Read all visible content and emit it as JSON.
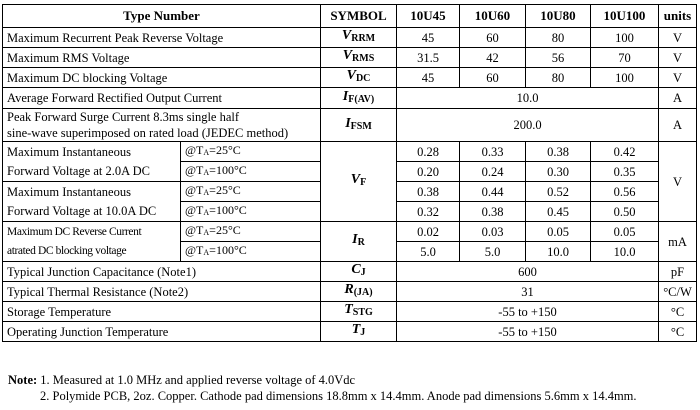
{
  "header": {
    "type_number": "Type Number",
    "symbol": "SYMBOL",
    "parts": [
      "10U45",
      "10U60",
      "10U80",
      "10U100"
    ],
    "units": "units"
  },
  "rows": {
    "vrrm": {
      "label": "Maximum Recurrent Peak Reverse Voltage",
      "sym": "V",
      "sub": "RRM",
      "values": [
        "45",
        "60",
        "80",
        "100"
      ],
      "unit": "V"
    },
    "vrms": {
      "label": "Maximum RMS Voltage",
      "sym": "V",
      "sub": "RMS",
      "values": [
        "31.5",
        "42",
        "56",
        "70"
      ],
      "unit": "V"
    },
    "vdc": {
      "label": "Maximum DC blocking Voltage",
      "sym": "V",
      "sub": "DC",
      "values": [
        "45",
        "60",
        "80",
        "100"
      ],
      "unit": "V"
    },
    "ifav": {
      "label": "Average Forward Rectified Output Current",
      "sym": "I",
      "sub": "F(AV)",
      "value": "10.0",
      "unit": "A"
    },
    "ifsm": {
      "label_1": "Peak Forward Surge Current 8.3ms single half",
      "label_2": "sine-wave superimposed on rated load (JEDEC method)",
      "sym": "I",
      "sub": "FSM",
      "value": "200.0",
      "unit": "A"
    },
    "vf": {
      "sym": "V",
      "sub": "F",
      "unit": "V",
      "label_a1": "Maximum Instantaneous",
      "label_a2": "Forward Voltage at 2.0A DC",
      "label_b1": "Maximum Instantaneous",
      "label_b2": "Forward Voltage at 10.0A DC",
      "cond_at": "@T",
      "cond_sub": "A",
      "cond_25": "=25°C",
      "cond_100": "=100°C",
      "r1": [
        "0.28",
        "0.33",
        "0.38",
        "0.42"
      ],
      "r2": [
        "0.20",
        "0.24",
        "0.30",
        "0.35"
      ],
      "r3": [
        "0.38",
        "0.44",
        "0.52",
        "0.56"
      ],
      "r4": [
        "0.32",
        "0.38",
        "0.45",
        "0.50"
      ]
    },
    "ir": {
      "sym": "I",
      "sub": "R",
      "unit": "mA",
      "label_1": "Maximum DC Reverse Current",
      "label_2": "atrated DC blocking voltage",
      "cond_at": "@T",
      "cond_sub": "A",
      "cond_25": "=25°C",
      "cond_100": "=100°C",
      "r1": [
        "0.02",
        "0.03",
        "0.05",
        "0.05"
      ],
      "r2": [
        "5.0",
        "5.0",
        "10.0",
        "10.0"
      ]
    },
    "cj": {
      "label": "Typical Junction Capacitance (Note1)",
      "sym": "C",
      "sub": "J",
      "value": "600",
      "unit": "pF"
    },
    "rja": {
      "label": "Typical Thermal Resistance (Note2)",
      "sym": "R",
      "sub": "(JA)",
      "value": "31",
      "unit": "°C/W"
    },
    "tstg": {
      "label": "Storage Temperature",
      "sym": "T",
      "sub": "STG",
      "value": "-55 to +150",
      "unit": "°C"
    },
    "tj": {
      "label": "Operating Junction Temperature",
      "sym": "T",
      "sub": "J",
      "value": "-55 to +150",
      "unit": "°C"
    }
  },
  "notes": {
    "label": "Note:",
    "note1": "1. Measured at 1.0 MHz and applied reverse voltage of 4.0Vdc",
    "note2": "2. Polymide PCB, 2oz. Copper. Cathode pad dimensions 18.8mm x 14.4mm. Anode pad dimensions 5.6mm x 14.4mm."
  }
}
